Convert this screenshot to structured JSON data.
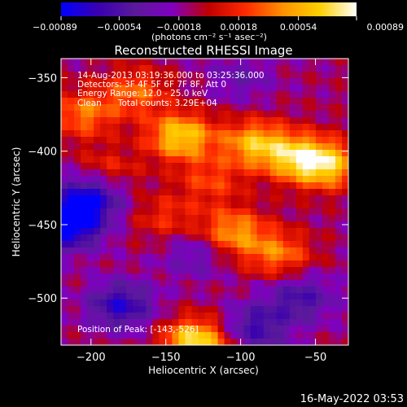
{
  "chart_data": {
    "type": "heatmap",
    "title": "Reconstructed RHESSI Image",
    "annotations": [
      "14-Aug-2013 03:19:36.000 to 03:25:36.000",
      "Detectors: 3F 4F 5F 6F 7F 8F, Att 0",
      "Energy Range: 12.0 - 25.0 keV",
      "Clean      Total counts: 3.29E+04"
    ],
    "peak_label": "Position of Peak: [-143,-526]",
    "xlabel": "Heliocentric X (arcsec)",
    "ylabel": "Heliocentric Y (arcsec)",
    "xlim": [
      -220,
      -28
    ],
    "ylim": [
      -532,
      -337
    ],
    "x_ticks": [
      -200,
      -150,
      -100,
      -50
    ],
    "x_tick_labels": [
      "−200",
      "−150",
      "−100",
      "−50"
    ],
    "y_ticks": [
      -350,
      -400,
      -450,
      -500
    ],
    "y_tick_labels": [
      "−350",
      "−400",
      "−450",
      "−500"
    ],
    "colorbar": {
      "range": [
        -0.00089,
        0.00089
      ],
      "tick_values": [
        -0.00089,
        -0.00054,
        -0.00018,
        0.00018,
        0.00054,
        0.00089
      ],
      "tick_labels": [
        "−0.00089",
        "−0.00054",
        "−0.00018",
        "0.00018",
        "0.00054",
        "0.00089"
      ],
      "units": "(photons cm⁻² s⁻¹ asec⁻²)",
      "colors": [
        "#0000ff",
        "#3a00b0",
        "#5a1a9a",
        "#8000c0",
        "#c00000",
        "#ff2a00",
        "#ff9000",
        "#ffd000",
        "#ffffff"
      ]
    },
    "features": [
      {
        "x": -130,
        "y": -530,
        "value": 0.00089
      },
      {
        "x": -140,
        "y": -390,
        "value": 0.0008
      },
      {
        "x": -90,
        "y": -395,
        "value": 0.0007
      },
      {
        "x": -60,
        "y": -405,
        "value": 0.00075
      },
      {
        "x": -40,
        "y": -410,
        "value": 0.0006
      },
      {
        "x": -105,
        "y": -455,
        "value": 0.0006
      },
      {
        "x": -75,
        "y": -470,
        "value": 0.0005
      },
      {
        "x": -205,
        "y": -375,
        "value": 0.0005
      },
      {
        "x": -170,
        "y": -360,
        "value": 0.00045
      },
      {
        "x": -190,
        "y": -415,
        "value": 0.00035
      },
      {
        "x": -120,
        "y": -420,
        "value": 0.00035
      },
      {
        "x": -150,
        "y": -445,
        "value": 0.0003
      },
      {
        "x": -215,
        "y": -450,
        "value": -0.00089
      },
      {
        "x": -200,
        "y": -430,
        "value": -0.0007
      },
      {
        "x": -180,
        "y": -505,
        "value": -0.0006
      },
      {
        "x": -90,
        "y": -520,
        "value": -0.0005
      },
      {
        "x": -60,
        "y": -500,
        "value": -0.00045
      },
      {
        "x": -130,
        "y": -470,
        "value": -0.0003
      },
      {
        "x": -100,
        "y": -350,
        "value": -0.00025
      }
    ]
  },
  "footer_timestamp": "16-May-2022 03:53"
}
